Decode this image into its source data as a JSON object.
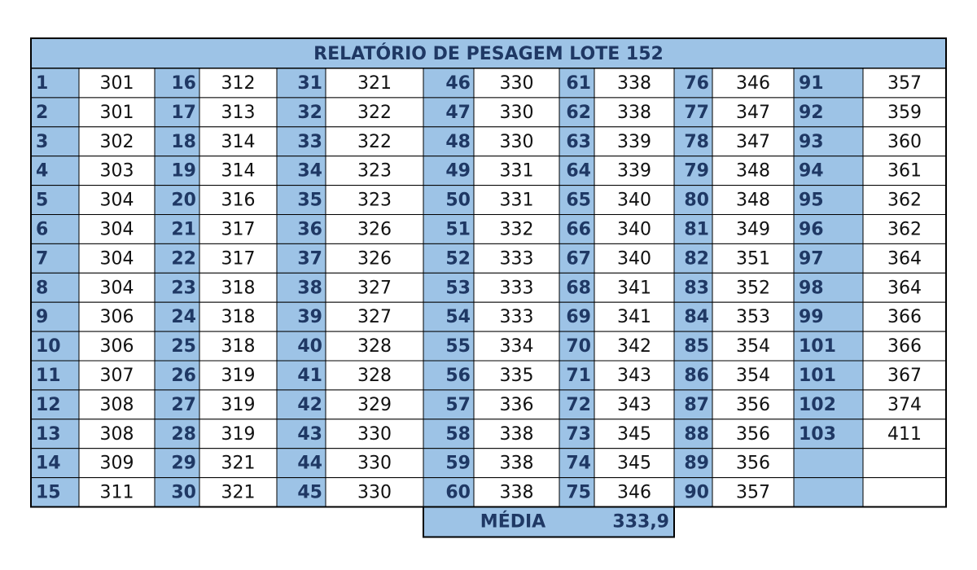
{
  "table": {
    "title": "RELATÓRIO DE PESAGEM LOTE 152",
    "columns": [
      {
        "rows": [
          [
            1,
            301
          ],
          [
            2,
            301
          ],
          [
            3,
            302
          ],
          [
            4,
            303
          ],
          [
            5,
            304
          ],
          [
            6,
            304
          ],
          [
            7,
            304
          ],
          [
            8,
            304
          ],
          [
            9,
            306
          ],
          [
            10,
            306
          ],
          [
            11,
            307
          ],
          [
            12,
            308
          ],
          [
            13,
            308
          ],
          [
            14,
            309
          ],
          [
            15,
            311
          ]
        ]
      },
      {
        "rows": [
          [
            16,
            312
          ],
          [
            17,
            313
          ],
          [
            18,
            314
          ],
          [
            19,
            314
          ],
          [
            20,
            316
          ],
          [
            21,
            317
          ],
          [
            22,
            317
          ],
          [
            23,
            318
          ],
          [
            24,
            318
          ],
          [
            25,
            318
          ],
          [
            26,
            319
          ],
          [
            27,
            319
          ],
          [
            28,
            319
          ],
          [
            29,
            321
          ],
          [
            30,
            321
          ]
        ]
      },
      {
        "rows": [
          [
            31,
            321
          ],
          [
            32,
            322
          ],
          [
            33,
            322
          ],
          [
            34,
            323
          ],
          [
            35,
            323
          ],
          [
            36,
            326
          ],
          [
            37,
            326
          ],
          [
            38,
            327
          ],
          [
            39,
            327
          ],
          [
            40,
            328
          ],
          [
            41,
            328
          ],
          [
            42,
            329
          ],
          [
            43,
            330
          ],
          [
            44,
            330
          ],
          [
            45,
            330
          ]
        ]
      },
      {
        "rows": [
          [
            46,
            330
          ],
          [
            47,
            330
          ],
          [
            48,
            330
          ],
          [
            49,
            331
          ],
          [
            50,
            331
          ],
          [
            51,
            332
          ],
          [
            52,
            333
          ],
          [
            53,
            333
          ],
          [
            54,
            333
          ],
          [
            55,
            334
          ],
          [
            56,
            335
          ],
          [
            57,
            336
          ],
          [
            58,
            338
          ],
          [
            59,
            338
          ],
          [
            60,
            338
          ]
        ]
      },
      {
        "rows": [
          [
            61,
            338
          ],
          [
            62,
            338
          ],
          [
            63,
            339
          ],
          [
            64,
            339
          ],
          [
            65,
            340
          ],
          [
            66,
            340
          ],
          [
            67,
            340
          ],
          [
            68,
            341
          ],
          [
            69,
            341
          ],
          [
            70,
            342
          ],
          [
            71,
            343
          ],
          [
            72,
            343
          ],
          [
            73,
            345
          ],
          [
            74,
            345
          ],
          [
            75,
            346
          ]
        ]
      },
      {
        "rows": [
          [
            76,
            346
          ],
          [
            77,
            347
          ],
          [
            78,
            347
          ],
          [
            79,
            348
          ],
          [
            80,
            348
          ],
          [
            81,
            349
          ],
          [
            82,
            351
          ],
          [
            83,
            352
          ],
          [
            84,
            353
          ],
          [
            85,
            354
          ],
          [
            86,
            354
          ],
          [
            87,
            356
          ],
          [
            88,
            356
          ],
          [
            89,
            356
          ],
          [
            90,
            357
          ]
        ]
      },
      {
        "rows": [
          [
            91,
            357
          ],
          [
            92,
            359
          ],
          [
            93,
            360
          ],
          [
            94,
            361
          ],
          [
            95,
            362
          ],
          [
            96,
            362
          ],
          [
            97,
            364
          ],
          [
            98,
            364
          ],
          [
            99,
            366
          ],
          [
            101,
            366
          ],
          [
            101,
            367
          ],
          [
            102,
            374
          ],
          [
            103,
            411
          ]
        ]
      }
    ],
    "footer": {
      "label": "MÉDIA",
      "value": "333,9"
    }
  }
}
